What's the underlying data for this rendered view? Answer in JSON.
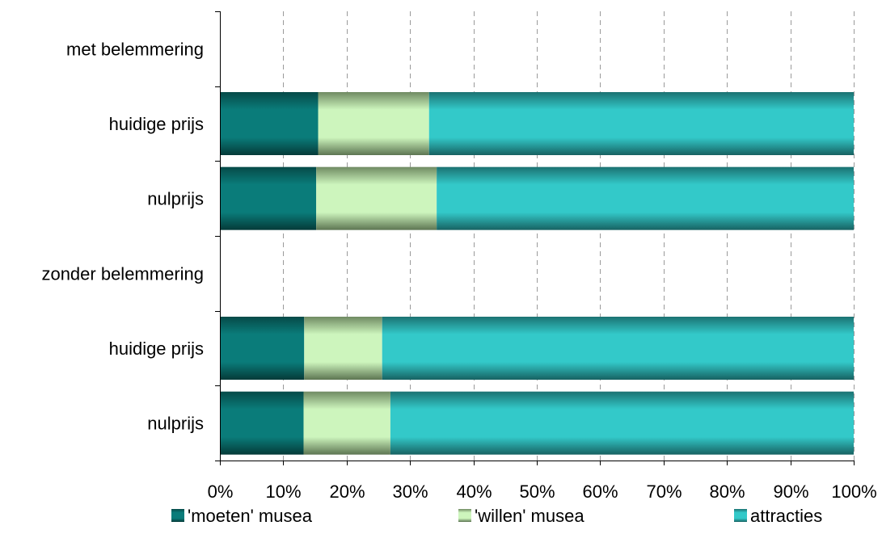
{
  "chart_data": {
    "type": "bar",
    "orientation": "horizontal",
    "stacked": "percent",
    "categories": [
      "met belemmering",
      "huidige prijs",
      "nulprijs",
      "zonder belemmering",
      "huidige prijs",
      "nulprijs"
    ],
    "series": [
      {
        "name": "'moeten' musea",
        "values": [
          null,
          15.5,
          15.2,
          null,
          13.3,
          13.2
        ]
      },
      {
        "name": "'willen' musea",
        "values": [
          null,
          17.5,
          19.0,
          null,
          12.3,
          13.7
        ]
      },
      {
        "name": "attracties",
        "values": [
          null,
          67.0,
          65.8,
          null,
          74.4,
          73.1
        ]
      }
    ],
    "x_ticks": [
      "0%",
      "10%",
      "20%",
      "30%",
      "40%",
      "50%",
      "60%",
      "70%",
      "80%",
      "90%",
      "100%"
    ],
    "xlim": [
      0,
      100
    ],
    "grid": "vertical dashed",
    "legend_position": "bottom",
    "colors": {
      "moeten": "#0a7a78",
      "willen": "#c8f0b8",
      "attracties": "#33c8c8"
    }
  }
}
